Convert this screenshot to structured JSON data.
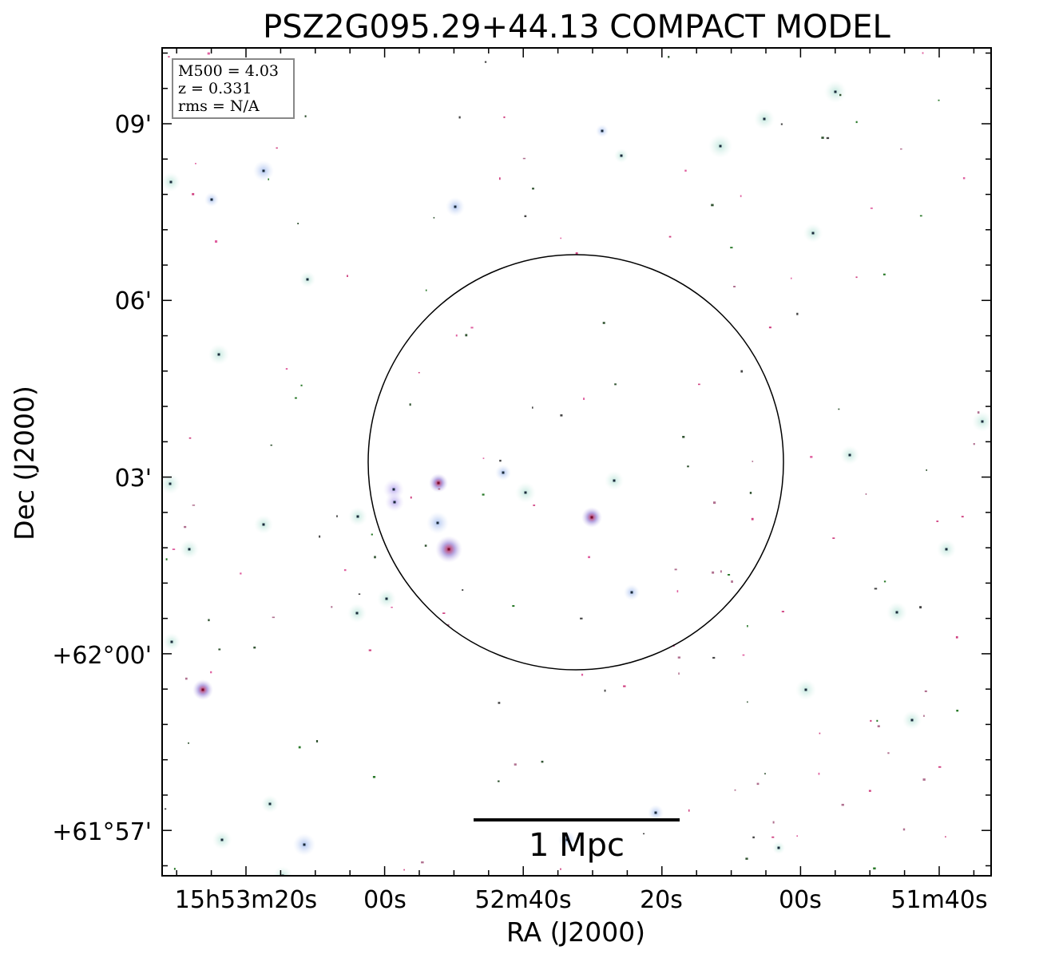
{
  "chart_data": {
    "type": "scatter",
    "title": "PSZ2G095.29+44.13 COMPACT MODEL",
    "xlabel": "RA (J2000)",
    "ylabel": "Dec (J2000)",
    "x_ticks": [
      "15h53m20s",
      "00s",
      "52m40s",
      "20s",
      "00s",
      "51m40s"
    ],
    "y_ticks": [
      "09'",
      "06'",
      "03'",
      "+62°00'",
      "+61°57'"
    ],
    "info_box": [
      "M500 = 4.03",
      "z = 0.331",
      "rms = N/A"
    ],
    "scale_bar_label": "1 Mpc",
    "circle_label": "",
    "grid": false,
    "legend": "top-left",
    "colors": {
      "halo_teal": "#d8f0ea",
      "halo_blue": "#b8cdf0",
      "halo_purple": "#c8b8f0",
      "core_red": "#c02040",
      "speck_pink": "#e060a0",
      "speck_green": "#2a7a2a",
      "axis": "#000000"
    }
  }
}
